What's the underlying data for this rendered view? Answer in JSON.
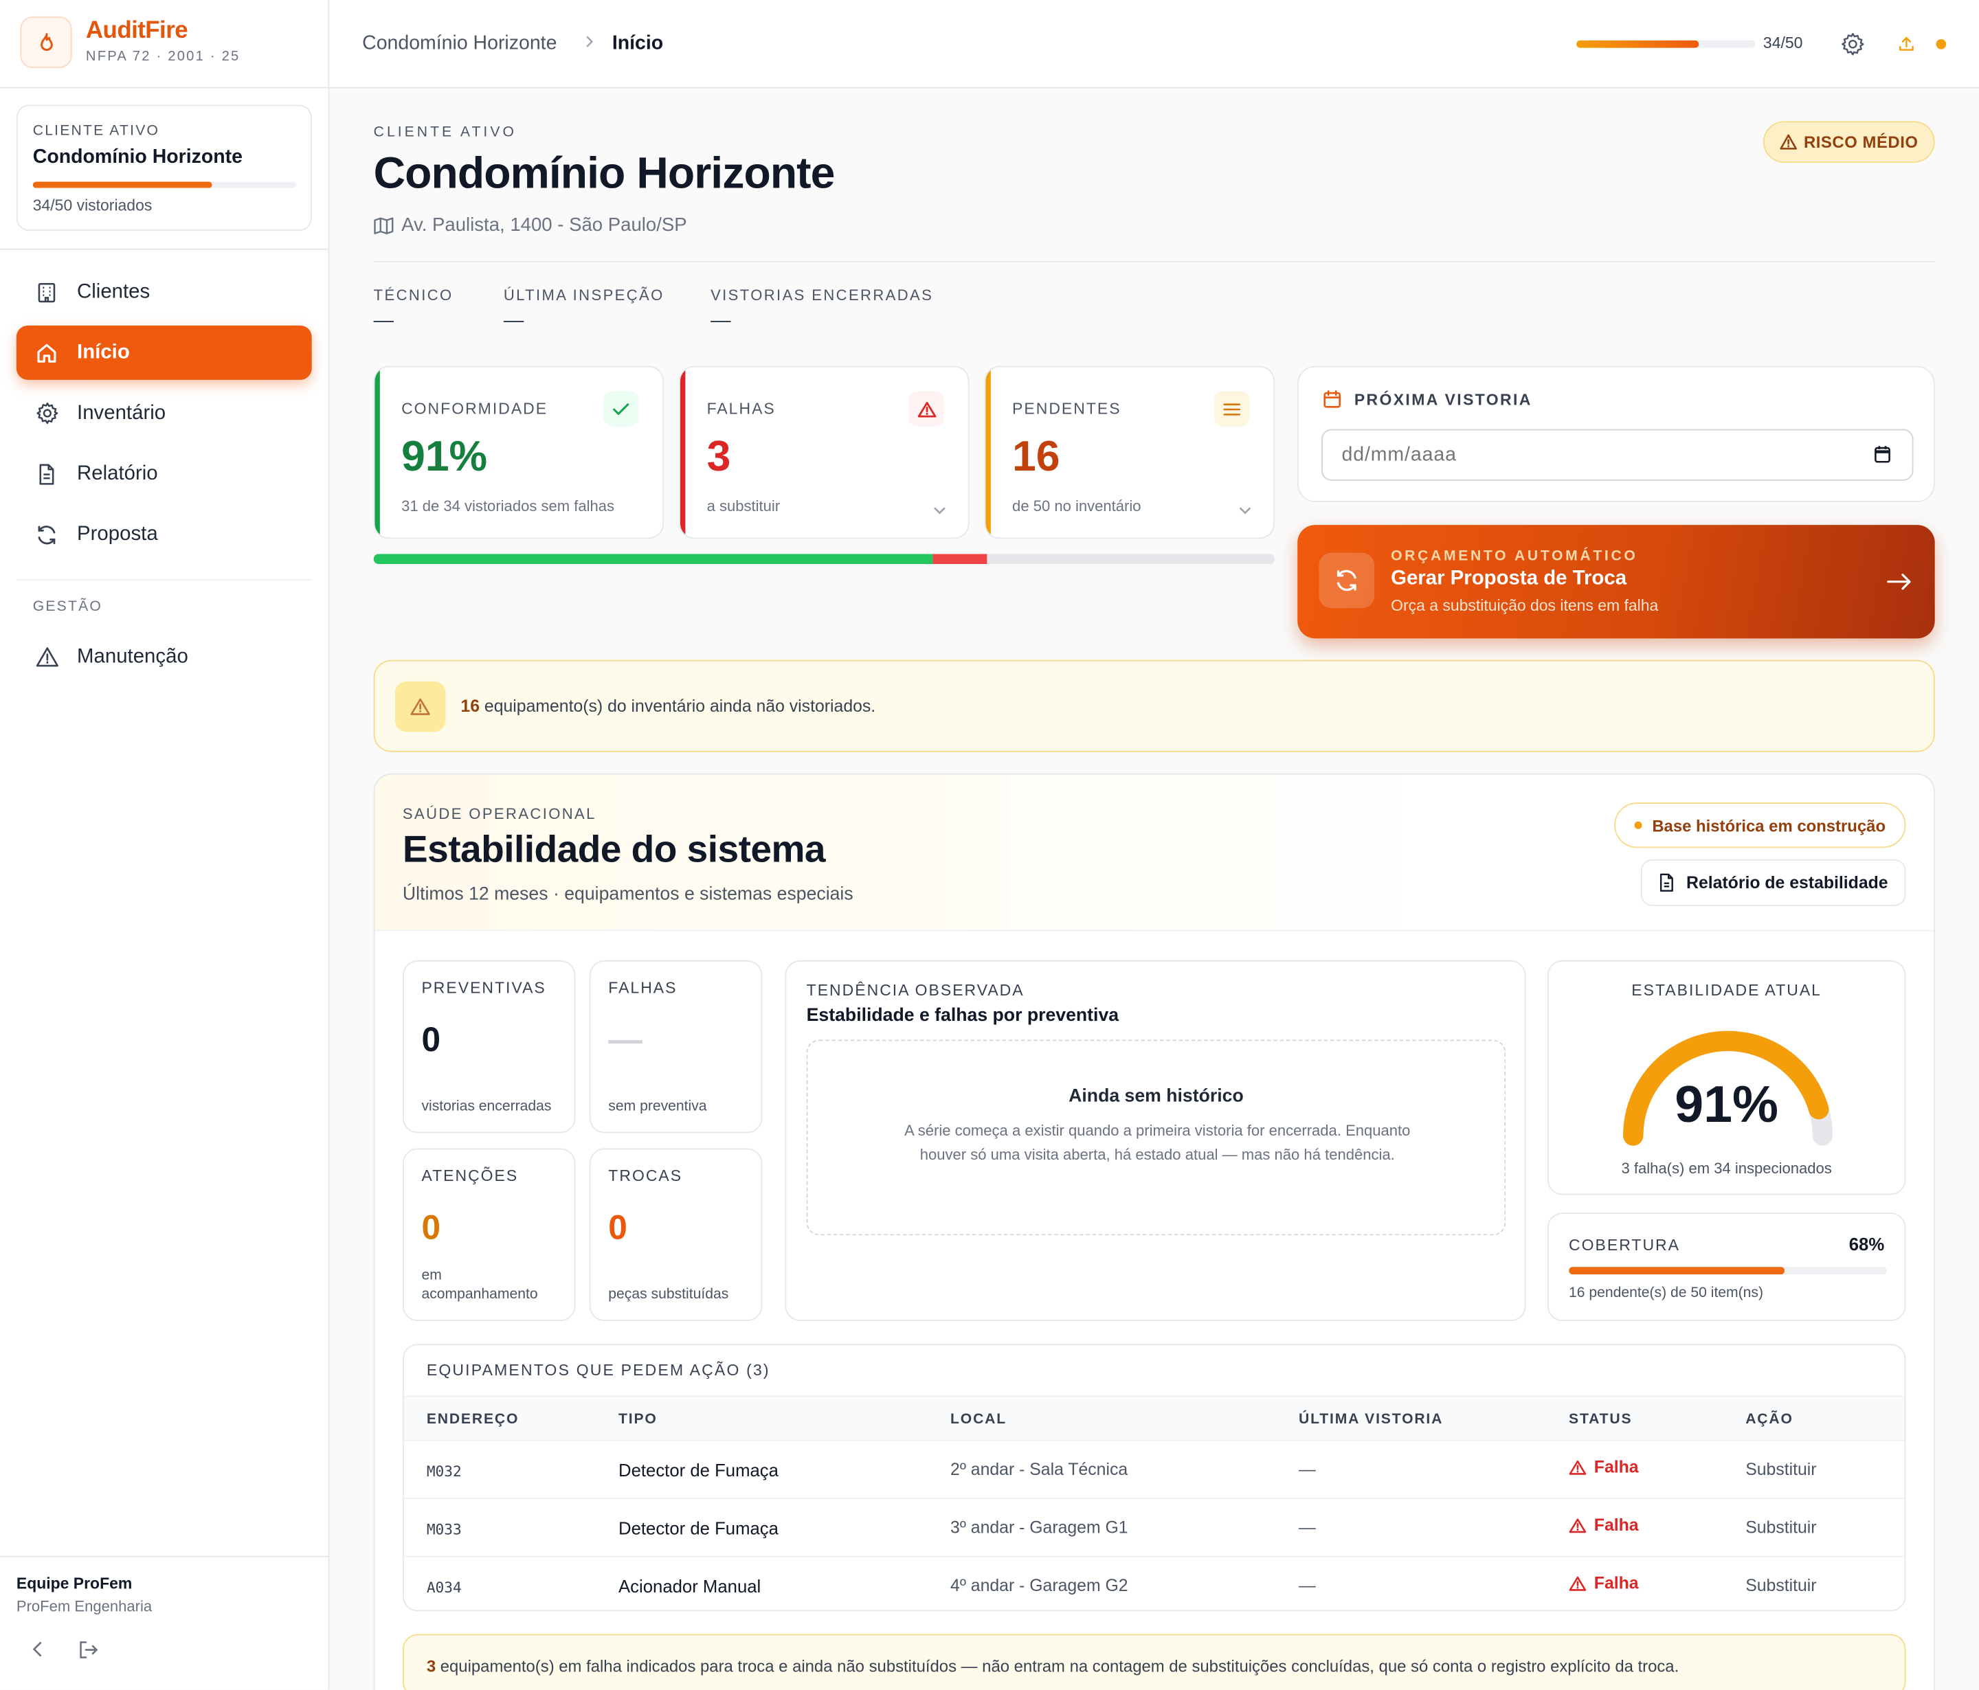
{
  "brand": {
    "name": "AuditFire",
    "subtitle": "NFPA 72 · 2001 · 25"
  },
  "sidebar": {
    "client_label": "CLIENTE ATIVO",
    "client_name": "Condomínio Horizonte",
    "client_progress": 0.68,
    "client_count": "34/50 vistoriados",
    "items": [
      {
        "label": "Clientes",
        "icon": "building-icon"
      },
      {
        "label": "Início",
        "icon": "home-icon",
        "active": true
      },
      {
        "label": "Inventário",
        "icon": "gear-icon"
      },
      {
        "label": "Relatório",
        "icon": "document-icon"
      },
      {
        "label": "Proposta",
        "icon": "refresh-icon"
      }
    ],
    "section_label": "GESTÃO",
    "section_items": [
      {
        "label": "Manutenção",
        "icon": "warning-icon"
      }
    ],
    "team_name": "Equipe ProFem",
    "team_org": "ProFem Engenharia"
  },
  "header": {
    "breadcrumb": [
      "Condomínio Horizonte",
      "Início"
    ],
    "progress": 0.68,
    "progress_text": "34/50",
    "status_dot_color": "#f59e0b"
  },
  "client": {
    "label": "CLIENTE ATIVO",
    "name": "Condomínio Horizonte",
    "address": "Av. Paulista, 1400 - São Paulo/SP",
    "risk": "RISCO MÉDIO",
    "meta": [
      {
        "label": "TÉCNICO",
        "value": "—"
      },
      {
        "label": "ÚLTIMA INSPEÇÃO",
        "value": "—"
      },
      {
        "label": "VISTORIAS ENCERRADAS",
        "value": "—"
      }
    ]
  },
  "kpis": [
    {
      "label": "CONFORMIDADE",
      "value": "91%",
      "sub": "31 de 34 vistoriados sem falhas",
      "color": "#16a34a",
      "icon": "check-icon"
    },
    {
      "label": "FALHAS",
      "value": "3",
      "sub": "a substituir",
      "color": "#dc2626",
      "icon": "alert-triangle-icon"
    },
    {
      "label": "PENDENTES",
      "value": "16",
      "sub": "de 50 no inventário",
      "color": "#c2410c",
      "icon": "list-icon"
    }
  ],
  "inventory_split": {
    "total": 50,
    "ok": 31,
    "fail": 3,
    "pending": 16
  },
  "next_inspection": {
    "label": "PRÓXIMA VISTORIA",
    "placeholder": "dd/mm/aaaa"
  },
  "cta": {
    "kicker": "ORÇAMENTO AUTOMÁTICO",
    "title": "Gerar Proposta de Troca",
    "subtitle": "Orça a substituição dos itens em falha"
  },
  "warning": {
    "count": "16",
    "text": " equipamento(s) do inventário ainda não vistoriados."
  },
  "stability": {
    "kicker": "SAÚDE OPERACIONAL",
    "title": "Estabilidade do sistema",
    "subtitle": "Últimos 12 meses · equipamentos e sistemas especiais",
    "pill": "Base histórica em construção",
    "report_button": "Relatório de estabilidade",
    "minis": [
      {
        "label": "PREVENTIVAS",
        "value": "0",
        "sub": "vistorias encerradas",
        "color": "#111827"
      },
      {
        "label": "FALHAS",
        "value": "—",
        "sub": "sem preventiva",
        "color": "#d1d5db"
      },
      {
        "label": "ATENÇÕES",
        "value": "0",
        "sub": "em acompanhamento",
        "color": "#d97706"
      },
      {
        "label": "TROCAS",
        "value": "0",
        "sub": "peças substituídas",
        "color": "#ea580c"
      }
    ],
    "trend": {
      "kicker": "TENDÊNCIA OBSERVADA",
      "title": "Estabilidade e falhas por preventiva",
      "empty_title": "Ainda sem histórico",
      "empty_text": "A série começa a existir quando a primeira vistoria for encerrada. Enquanto houver só uma visita aberta, há estado atual — mas não há tendência."
    },
    "gauge": {
      "label": "ESTABILIDADE ATUAL",
      "value": "91%",
      "fraction": 0.91,
      "sub": "3 falha(s) em 34 inspecionados"
    },
    "coverage": {
      "label": "COBERTURA",
      "value": "68%",
      "fraction": 0.68,
      "sub": "16 pendente(s) de 50 item(ns)"
    }
  },
  "table": {
    "title": "EQUIPAMENTOS QUE PEDEM AÇÃO (3)",
    "columns": [
      "ENDEREÇO",
      "TIPO",
      "LOCAL",
      "ÚLTIMA VISTORIA",
      "STATUS",
      "AÇÃO"
    ],
    "rows": [
      {
        "address": "M032",
        "type": "Detector de Fumaça",
        "location": "2º andar - Sala Técnica",
        "last": "—",
        "status": "Falha",
        "action": "Substituir"
      },
      {
        "address": "M033",
        "type": "Detector de Fumaça",
        "location": "3º andar - Garagem G1",
        "last": "—",
        "status": "Falha",
        "action": "Substituir"
      },
      {
        "address": "A034",
        "type": "Acionador Manual",
        "location": "4º andar - Garagem G2",
        "last": "—",
        "status": "Falha",
        "action": "Substituir"
      }
    ]
  },
  "footnote": {
    "count": "3",
    "text": " equipamento(s) em falha indicados para troca e ainda não substituídos — não entram na contagem de substituições concluídas, que só conta o registro explícito da troca."
  }
}
